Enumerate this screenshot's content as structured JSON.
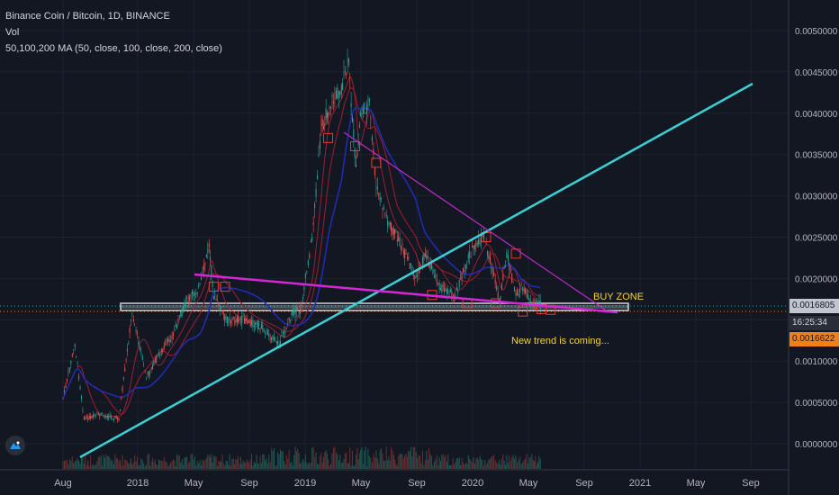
{
  "legend": {
    "line1": "Binance Coin / Bitcoin, 1D, BINANCE",
    "line2": "Vol",
    "line3": "50,100,200 MA (50, close, 100, close, 200, close)"
  },
  "annotations": {
    "buy_zone": "BUY ZONE",
    "new_trend": "New trend is coming..."
  },
  "price_tags": {
    "last_price": "0.0016805",
    "countdown": "16:25:34",
    "secondary_price": "0.0016622"
  },
  "colors": {
    "background": "#131722",
    "trendline_up": "#3ad1d6",
    "trendline_magenta": "#d526d8",
    "ma_blue": "#1f2bb0",
    "ma_red": "#8c1c2a",
    "annotation_yellow": "#f2d33b",
    "last_price_tag": "#c0c6ce",
    "countdown_tag": "#2a2e39",
    "secondary_tag": "#f57f17"
  },
  "chart_data": {
    "type": "line",
    "title": "Binance Coin / Bitcoin, 1D, BINANCE",
    "x_ticks": [
      "Aug",
      "2018",
      "May",
      "Sep",
      "2019",
      "May",
      "Sep",
      "2020",
      "May",
      "Sep",
      "2021",
      "May",
      "Sep"
    ],
    "y_ticks": [
      "0.0050000",
      "0.0045000",
      "0.0040000",
      "0.0035000",
      "0.0030000",
      "0.0025000",
      "0.0020000",
      "0.0015000",
      "0.0010000",
      "0.0005000",
      "0.0000000"
    ],
    "ylim": [
      -0.0003,
      0.0053
    ],
    "series": [
      {
        "values": [
          [
            "2017-08-10",
            0.00055
          ],
          [
            "2017-09-05",
            0.0012
          ],
          [
            "2017-09-25",
            0.0003
          ],
          [
            "2017-11-01",
            0.00035
          ],
          [
            "2017-12-10",
            0.0003
          ],
          [
            "2018-01-08",
            0.0016
          ],
          [
            "2018-02-08",
            0.0008
          ],
          [
            "2018-03-10",
            0.0011
          ],
          [
            "2018-04-05",
            0.0013
          ],
          [
            "2018-05-05",
            0.0017
          ],
          [
            "2018-06-05",
            0.0019
          ],
          [
            "2018-06-25",
            0.0024
          ],
          [
            "2018-07-05",
            0.0018
          ],
          [
            "2018-08-01",
            0.0015
          ],
          [
            "2018-09-10",
            0.0015
          ],
          [
            "2018-10-20",
            0.0014
          ],
          [
            "2018-11-25",
            0.0012
          ],
          [
            "2018-12-25",
            0.0016
          ],
          [
            "2019-01-10",
            0.0016
          ],
          [
            "2019-02-05",
            0.0025
          ],
          [
            "2019-02-25",
            0.0038
          ],
          [
            "2019-03-15",
            0.0041
          ],
          [
            "2019-04-10",
            0.0043
          ],
          [
            "2019-04-26",
            0.0046
          ],
          [
            "2019-05-12",
            0.0033
          ],
          [
            "2019-05-22",
            0.004
          ],
          [
            "2019-06-10",
            0.0041
          ],
          [
            "2019-06-25",
            0.0031
          ],
          [
            "2019-07-20",
            0.0027
          ],
          [
            "2019-08-10",
            0.0025
          ],
          [
            "2019-09-20",
            0.002
          ],
          [
            "2019-10-10",
            0.0023
          ],
          [
            "2019-11-10",
            0.0019
          ],
          [
            "2019-12-15",
            0.0018
          ],
          [
            "2020-01-15",
            0.0023
          ],
          [
            "2020-02-15",
            0.0025
          ],
          [
            "2020-03-05",
            0.0021
          ],
          [
            "2020-03-20",
            0.0017
          ],
          [
            "2020-04-05",
            0.0023
          ],
          [
            "2020-04-25",
            0.0018
          ],
          [
            "2020-05-10",
            0.0019
          ],
          [
            "2020-05-30",
            0.0017
          ],
          [
            "2020-06-20",
            0.00168
          ]
        ]
      }
    ]
  }
}
